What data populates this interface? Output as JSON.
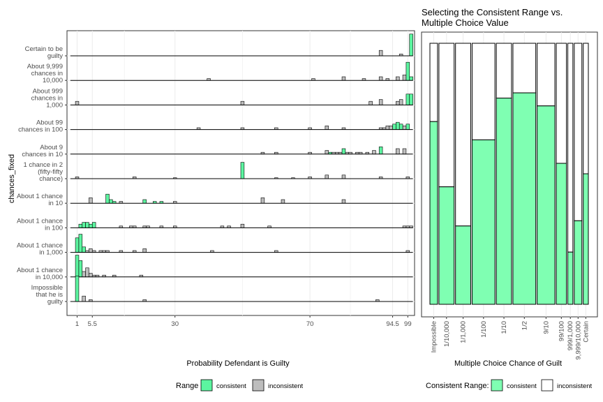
{
  "chart_data": [
    {
      "type": "bar",
      "subtype": "ridgeline-histogram",
      "xlabel": "Probability Defendant is Guilty",
      "ylabel": "chances_fixed",
      "xlim": [
        -2,
        101
      ],
      "x_ticks": [
        1,
        5.5,
        30,
        70,
        94.5,
        99
      ],
      "x_tick_labels": [
        "1",
        "5.5",
        "30",
        "70",
        "94.5",
        "99"
      ],
      "bin_width": 1,
      "rows": [
        {
          "label_lines": [
            "Certain to be",
            "guilty"
          ],
          "consistent": [
            [
              100,
              12
            ]
          ],
          "inconsistent": [
            [
              91,
              3
            ],
            [
              97,
              1
            ]
          ]
        },
        {
          "label_lines": [
            "About 9,999",
            "chances in",
            "10,000"
          ],
          "consistent": [
            [
              99,
              10
            ],
            [
              100,
              2
            ]
          ],
          "inconsistent": [
            [
              40,
              1
            ],
            [
              71,
              1
            ],
            [
              80,
              2
            ],
            [
              86,
              1
            ],
            [
              91,
              2
            ],
            [
              93,
              1
            ],
            [
              96,
              2
            ],
            [
              98,
              3
            ]
          ]
        },
        {
          "label_lines": [
            "About 999",
            "chances in",
            "1,000"
          ],
          "consistent": [
            [
              99,
              6
            ],
            [
              100,
              6
            ]
          ],
          "inconsistent": [
            [
              1,
              2
            ],
            [
              50,
              2
            ],
            [
              88,
              2
            ],
            [
              91,
              3
            ],
            [
              96,
              2
            ],
            [
              97,
              3
            ]
          ]
        },
        {
          "label_lines": [
            "About 99",
            "chances in 100"
          ],
          "consistent": [
            [
              95,
              3
            ],
            [
              96,
              4
            ],
            [
              97,
              3
            ],
            [
              99,
              3
            ]
          ],
          "inconsistent": [
            [
              37,
              1
            ],
            [
              50,
              1
            ],
            [
              60,
              1
            ],
            [
              70,
              1
            ],
            [
              75,
              2
            ],
            [
              80,
              1
            ],
            [
              91,
              1
            ],
            [
              92,
              1
            ],
            [
              93,
              2
            ],
            [
              94,
              2
            ],
            [
              98,
              2
            ]
          ]
        },
        {
          "label_lines": [
            "About 9",
            "chances in 10"
          ],
          "consistent": [
            [
              76,
              1
            ],
            [
              80,
              3
            ],
            [
              91,
              4
            ]
          ],
          "inconsistent": [
            [
              56,
              1
            ],
            [
              60,
              1
            ],
            [
              70,
              1
            ],
            [
              75,
              2
            ],
            [
              77,
              1
            ],
            [
              78,
              1
            ],
            [
              79,
              1
            ],
            [
              81,
              1
            ],
            [
              82,
              1
            ],
            [
              84,
              1
            ],
            [
              85,
              1
            ],
            [
              87,
              1
            ],
            [
              89,
              2
            ],
            [
              96,
              3
            ],
            [
              98,
              3
            ]
          ]
        },
        {
          "label_lines": [
            "1 chance in 2",
            "(fifty-fifty",
            "chance)"
          ],
          "consistent": [
            [
              50,
              9
            ]
          ],
          "inconsistent": [
            [
              1,
              1
            ],
            [
              18,
              1
            ],
            [
              30,
              0.5
            ],
            [
              60,
              0.5
            ],
            [
              65,
              0.5
            ],
            [
              70,
              1
            ],
            [
              75,
              2
            ],
            [
              80,
              2
            ],
            [
              91,
              1
            ],
            [
              99,
              1
            ]
          ]
        },
        {
          "label_lines": [
            "About 1 chance",
            "in 10"
          ],
          "consistent": [
            [
              10,
              5
            ],
            [
              11,
              2
            ],
            [
              12,
              1
            ],
            [
              21,
              2
            ],
            [
              24,
              1
            ],
            [
              26,
              1
            ]
          ],
          "inconsistent": [
            [
              5,
              3
            ],
            [
              14,
              1
            ],
            [
              30,
              1
            ],
            [
              56,
              3
            ],
            [
              62,
              2
            ],
            [
              80,
              2
            ]
          ]
        },
        {
          "label_lines": [
            "About 1 chance",
            "in 100"
          ],
          "consistent": [
            [
              2,
              2
            ],
            [
              3,
              3
            ],
            [
              4,
              3
            ],
            [
              5,
              2
            ],
            [
              6,
              3
            ]
          ],
          "inconsistent": [
            [
              14,
              1
            ],
            [
              17,
              1
            ],
            [
              18,
              1
            ],
            [
              21,
              1
            ],
            [
              22,
              1
            ],
            [
              26,
              1
            ],
            [
              30,
              1
            ],
            [
              44,
              1
            ],
            [
              46,
              1
            ],
            [
              50,
              2
            ],
            [
              58,
              1
            ],
            [
              98,
              1
            ],
            [
              99,
              1
            ],
            [
              100,
              1
            ]
          ]
        },
        {
          "label_lines": [
            "About 1 chance",
            "in 1,000"
          ],
          "consistent": [
            [
              1,
              8
            ],
            [
              2,
              10
            ],
            [
              3,
              3
            ]
          ],
          "inconsistent": [
            [
              4,
              1
            ],
            [
              5,
              2
            ],
            [
              6,
              1
            ],
            [
              8,
              1
            ],
            [
              9,
              1
            ],
            [
              10,
              1
            ],
            [
              14,
              1
            ],
            [
              18,
              1
            ],
            [
              21,
              2
            ],
            [
              41,
              1
            ],
            [
              60,
              1
            ],
            [
              99,
              1
            ]
          ]
        },
        {
          "label_lines": [
            "About 1 chance",
            "in 10,000"
          ],
          "consistent": [
            [
              1,
              12
            ],
            [
              2,
              9
            ]
          ],
          "inconsistent": [
            [
              3,
              3
            ],
            [
              4,
              5
            ],
            [
              5,
              2
            ],
            [
              6,
              1
            ],
            [
              7,
              1
            ],
            [
              9,
              1
            ],
            [
              12,
              1
            ],
            [
              20,
              1
            ]
          ]
        },
        {
          "label_lines": [
            "Impossible",
            "that he is",
            "guilty"
          ],
          "consistent": [
            [
              1,
              14
            ]
          ],
          "inconsistent": [
            [
              3,
              3
            ],
            [
              5,
              1
            ],
            [
              21,
              1
            ],
            [
              90,
              1
            ]
          ]
        }
      ],
      "legend": {
        "title": "Range",
        "entries": [
          "consistent",
          "inconsistent"
        ],
        "placement": "bottom"
      },
      "grid": true
    },
    {
      "type": "bar",
      "subtype": "mosaic",
      "title_lines": [
        "Selecting the Consistent Range vs.",
        "Multiple Choice Value"
      ],
      "xlabel": "Multiple Choice Chance of Guilt",
      "categories": [
        "Impossible",
        "1/10,000",
        "1/1,000",
        "1/100",
        "1/10",
        "1/2",
        "9/10",
        "99/100",
        "999/1,000",
        "9,999/10,000",
        "Certain"
      ],
      "category_share": [
        3,
        6,
        6,
        9,
        6,
        9,
        7,
        4,
        2,
        3,
        2
      ],
      "consistent_proportion": [
        0.7,
        0.45,
        0.3,
        0.63,
        0.79,
        0.81,
        0.76,
        0.54,
        0.2,
        0.32,
        0.5
      ],
      "legend": {
        "title": "Consistent Range:",
        "entries": [
          "consistent",
          "inconsistent"
        ],
        "placement": "bottom"
      },
      "colors": {
        "consistent": "#7fffb2",
        "inconsistent": "#ffffff"
      },
      "grid": true
    }
  ],
  "colors": {
    "consistent": "#5cf5a0",
    "inconsistent": "#bdbdbd",
    "panel_border": "#333333",
    "grid": "#ebebeb"
  }
}
